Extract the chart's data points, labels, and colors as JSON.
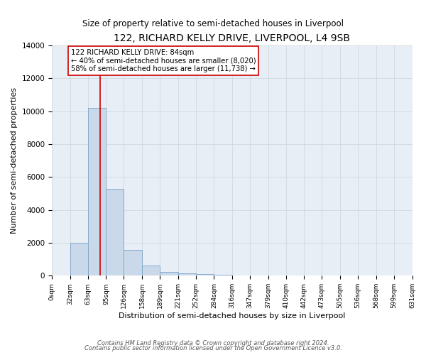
{
  "title": "122, RICHARD KELLY DRIVE, LIVERPOOL, L4 9SB",
  "subtitle": "Size of property relative to semi-detached houses in Liverpool",
  "xlabel": "Distribution of semi-detached houses by size in Liverpool",
  "ylabel": "Number of semi-detached properties",
  "bar_color": "#c9d9ea",
  "bar_edge_color": "#7ba3c8",
  "background_color": "#ffffff",
  "plot_bg_color": "#e8eef5",
  "grid_color": "#d0d8e0",
  "red_line_x": 84,
  "bin_edges": [
    0,
    32,
    63,
    95,
    126,
    158,
    189,
    221,
    252,
    284,
    316,
    347,
    379,
    410,
    442,
    473,
    505,
    536,
    568,
    599,
    631
  ],
  "bin_counts": [
    0,
    1980,
    10200,
    5280,
    1580,
    630,
    240,
    130,
    80,
    50,
    0,
    0,
    0,
    0,
    0,
    0,
    0,
    0,
    0,
    0
  ],
  "tick_labels": [
    "0sqm",
    "32sqm",
    "63sqm",
    "95sqm",
    "126sqm",
    "158sqm",
    "189sqm",
    "221sqm",
    "252sqm",
    "284sqm",
    "316sqm",
    "347sqm",
    "379sqm",
    "410sqm",
    "442sqm",
    "473sqm",
    "505sqm",
    "536sqm",
    "568sqm",
    "599sqm",
    "631sqm"
  ],
  "ylim": [
    0,
    14000
  ],
  "yticks": [
    0,
    2000,
    4000,
    6000,
    8000,
    10000,
    12000,
    14000
  ],
  "footer_line1": "Contains HM Land Registry data © Crown copyright and database right 2024.",
  "footer_line2": "Contains public sector information licensed under the Open Government Licence v3.0.",
  "annotation_line1": "122 RICHARD KELLY DRIVE: 84sqm",
  "annotation_line2": "← 40% of semi-detached houses are smaller (8,020)",
  "annotation_line3": "58% of semi-detached houses are larger (11,738) →"
}
